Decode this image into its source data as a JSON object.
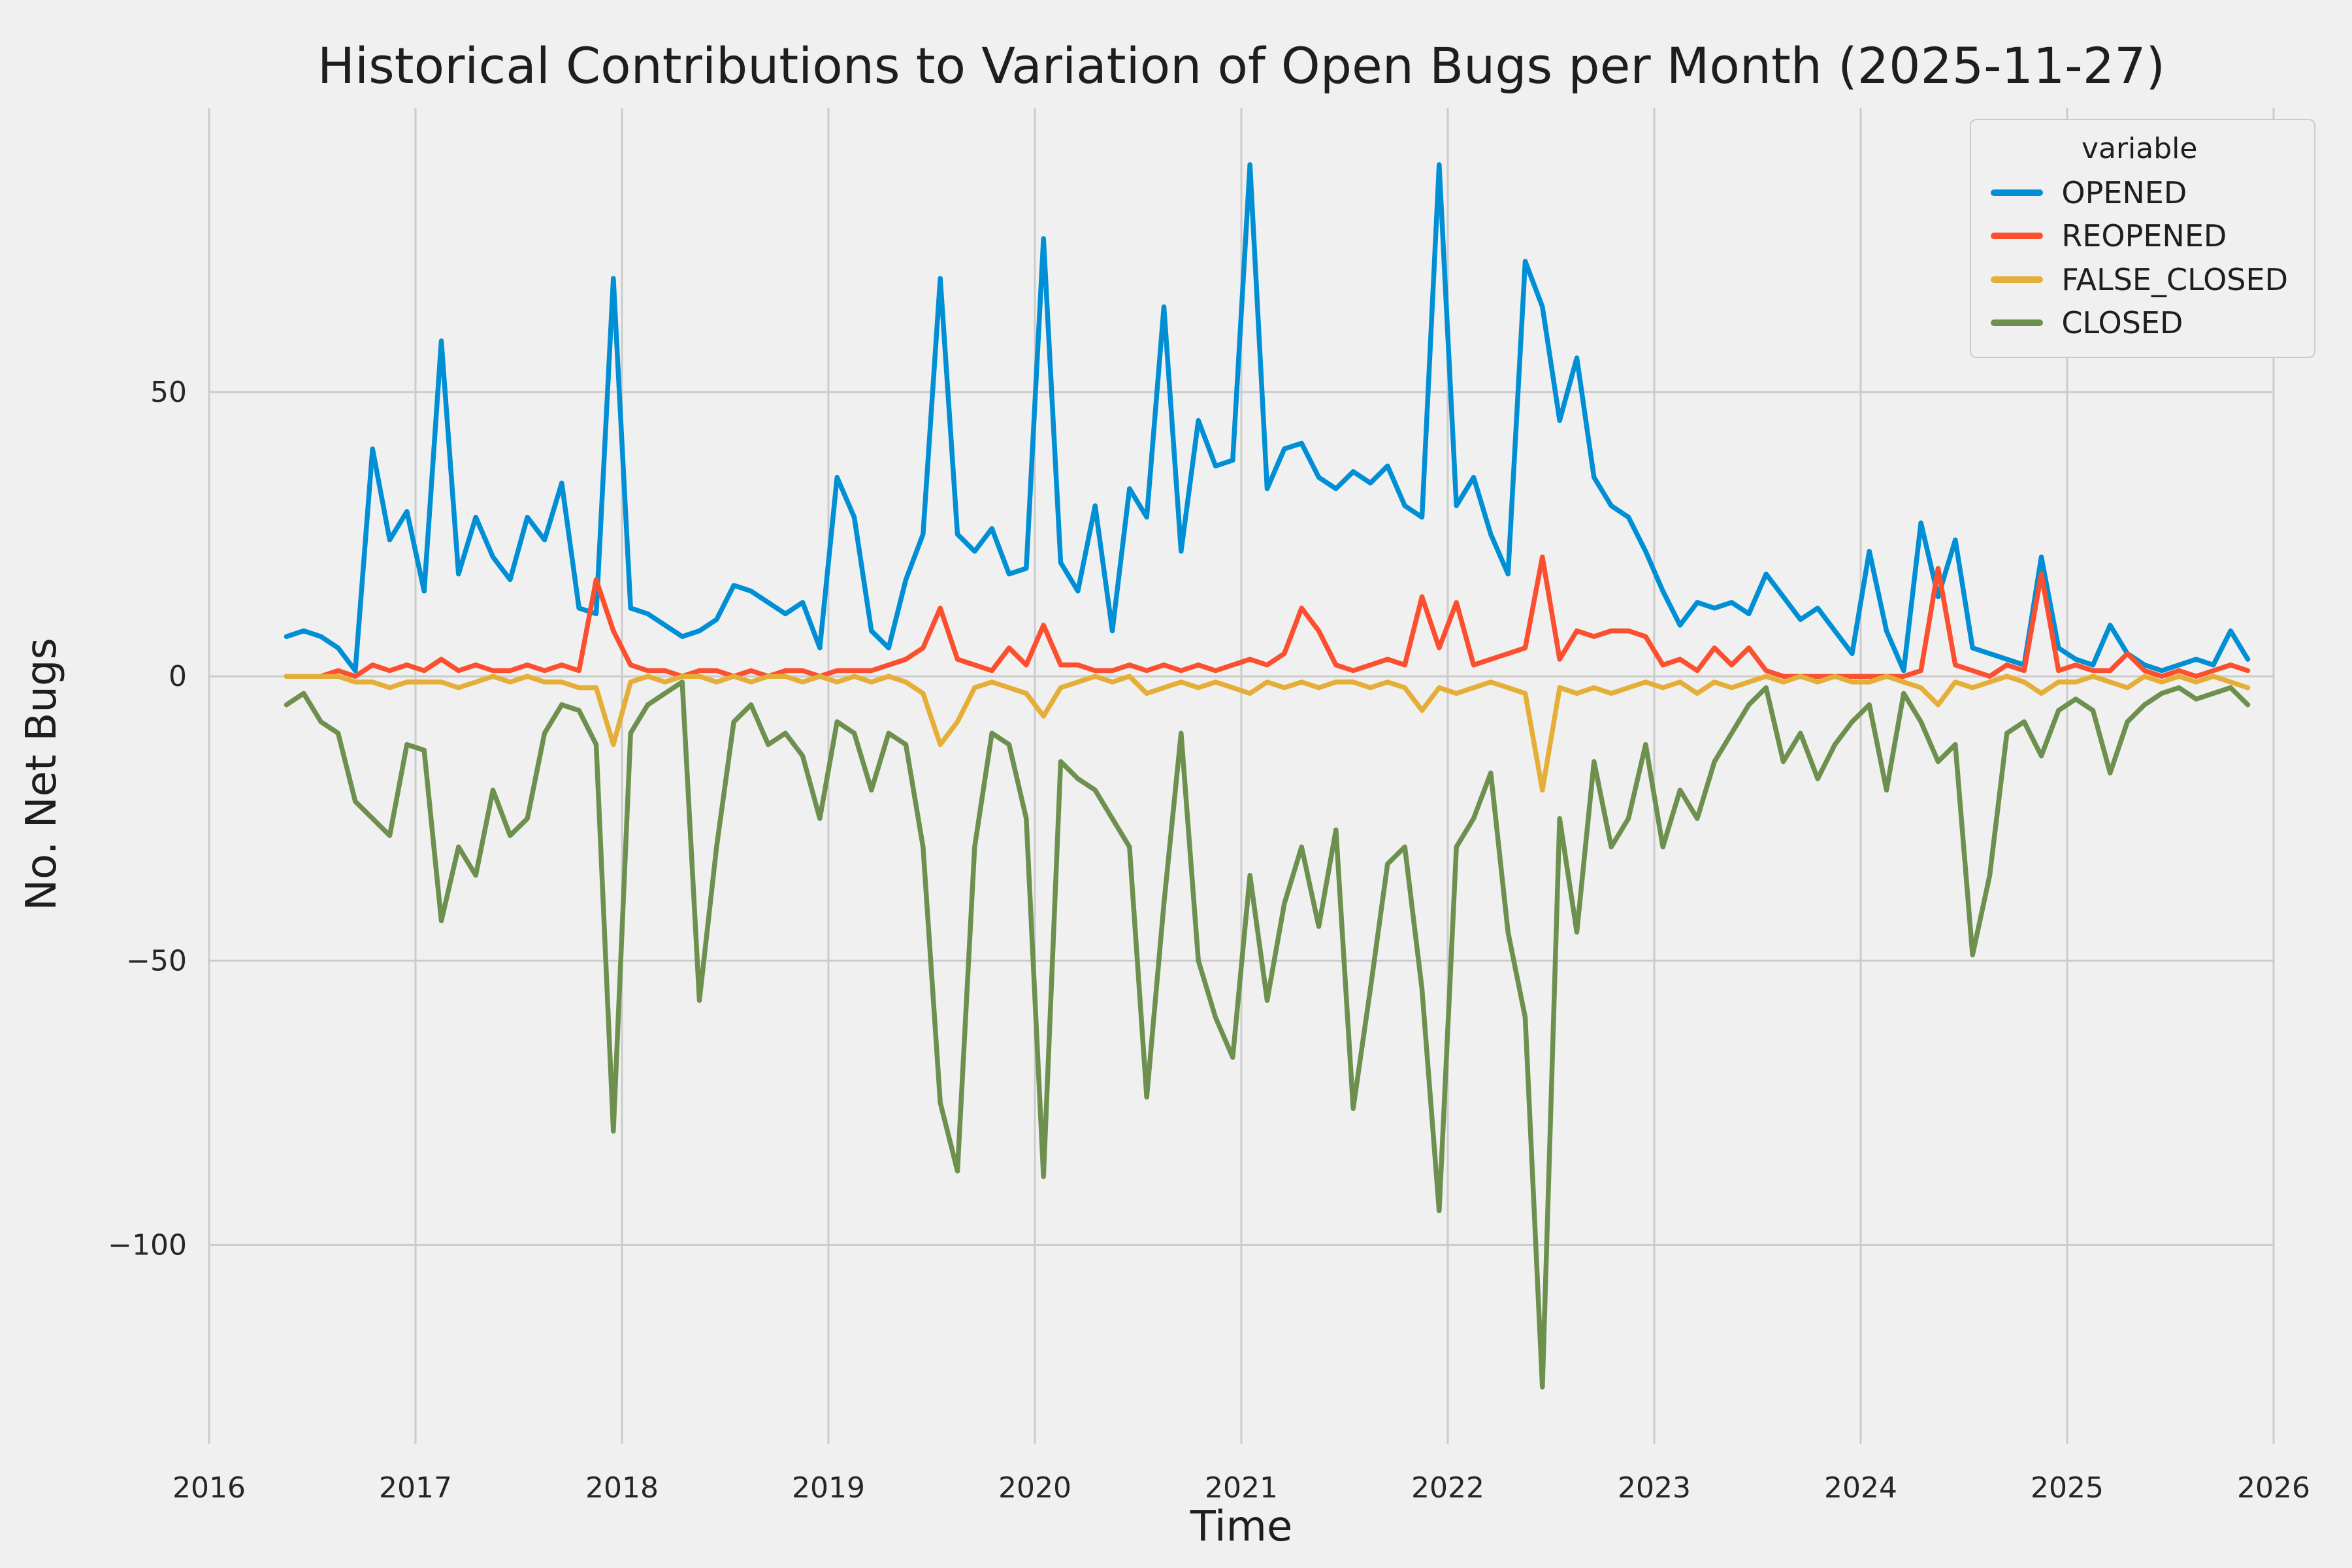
{
  "figure": {
    "background": "#f0f0f0",
    "grid_color": "#cbcbcb",
    "tick_color": "#262626"
  },
  "chart_data": {
    "type": "line",
    "title": "Historical Contributions to Variation of Open Bugs per Month (2025-11-27)",
    "xlabel": "Time",
    "ylabel": "No. Net Bugs",
    "legend_title": "variable",
    "legend_position": "upper right",
    "grid": true,
    "xlim": [
      2016,
      2026
    ],
    "ylim": [
      -135,
      100
    ],
    "x_ticks": [
      2016,
      2017,
      2018,
      2019,
      2020,
      2021,
      2022,
      2023,
      2024,
      2025,
      2026
    ],
    "y_ticks": [
      -100,
      -50,
      0,
      50
    ],
    "months": [
      "2016-05",
      "2016-06",
      "2016-07",
      "2016-08",
      "2016-09",
      "2016-10",
      "2016-11",
      "2016-12",
      "2017-01",
      "2017-02",
      "2017-03",
      "2017-04",
      "2017-05",
      "2017-06",
      "2017-07",
      "2017-08",
      "2017-09",
      "2017-10",
      "2017-11",
      "2017-12",
      "2018-01",
      "2018-02",
      "2018-03",
      "2018-04",
      "2018-05",
      "2018-06",
      "2018-07",
      "2018-08",
      "2018-09",
      "2018-10",
      "2018-11",
      "2018-12",
      "2019-01",
      "2019-02",
      "2019-03",
      "2019-04",
      "2019-05",
      "2019-06",
      "2019-07",
      "2019-08",
      "2019-09",
      "2019-10",
      "2019-11",
      "2019-12",
      "2020-01",
      "2020-02",
      "2020-03",
      "2020-04",
      "2020-05",
      "2020-06",
      "2020-07",
      "2020-08",
      "2020-09",
      "2020-10",
      "2020-11",
      "2020-12",
      "2021-01",
      "2021-02",
      "2021-03",
      "2021-04",
      "2021-05",
      "2021-06",
      "2021-07",
      "2021-08",
      "2021-09",
      "2021-10",
      "2021-11",
      "2021-12",
      "2022-01",
      "2022-02",
      "2022-03",
      "2022-04",
      "2022-05",
      "2022-06",
      "2022-07",
      "2022-08",
      "2022-09",
      "2022-10",
      "2022-11",
      "2022-12",
      "2023-01",
      "2023-02",
      "2023-03",
      "2023-04",
      "2023-05",
      "2023-06",
      "2023-07",
      "2023-08",
      "2023-09",
      "2023-10",
      "2023-11",
      "2023-12",
      "2024-01",
      "2024-02",
      "2024-03",
      "2024-04",
      "2024-05",
      "2024-06",
      "2024-07",
      "2024-08",
      "2024-09",
      "2024-10",
      "2024-11",
      "2024-12",
      "2025-01",
      "2025-02",
      "2025-03",
      "2025-04",
      "2025-05",
      "2025-06",
      "2025-07",
      "2025-08",
      "2025-09",
      "2025-10",
      "2025-11"
    ],
    "series": [
      {
        "name": "OPENED",
        "color": "#008fd5",
        "values": [
          7,
          8,
          7,
          5,
          1,
          40,
          24,
          29,
          15,
          59,
          18,
          28,
          21,
          17,
          28,
          24,
          34,
          12,
          11,
          70,
          12,
          11,
          9,
          7,
          8,
          10,
          16,
          15,
          13,
          11,
          13,
          5,
          35,
          28,
          8,
          5,
          17,
          25,
          70,
          25,
          22,
          26,
          18,
          19,
          77,
          20,
          15,
          30,
          8,
          33,
          28,
          65,
          22,
          45,
          37,
          38,
          90,
          33,
          40,
          41,
          35,
          33,
          36,
          34,
          37,
          30,
          28,
          90,
          30,
          35,
          25,
          18,
          73,
          65,
          45,
          56,
          35,
          30,
          28,
          22,
          15,
          9,
          13,
          12,
          13,
          11,
          18,
          14,
          10,
          12,
          8,
          4,
          22,
          8,
          1,
          27,
          14,
          24,
          5,
          4,
          3,
          2,
          21,
          5,
          3,
          2,
          9,
          4,
          2,
          1,
          2,
          3,
          2,
          8,
          3
        ]
      },
      {
        "name": "REOPENED",
        "color": "#fc4f30",
        "values": [
          0,
          0,
          0,
          1,
          0,
          2,
          1,
          2,
          1,
          3,
          1,
          2,
          1,
          1,
          2,
          1,
          2,
          1,
          17,
          8,
          2,
          1,
          1,
          0,
          1,
          1,
          0,
          1,
          0,
          1,
          1,
          0,
          1,
          1,
          1,
          2,
          3,
          5,
          12,
          3,
          2,
          1,
          5,
          2,
          9,
          2,
          2,
          1,
          1,
          2,
          1,
          2,
          1,
          2,
          1,
          2,
          3,
          2,
          4,
          12,
          8,
          2,
          1,
          2,
          3,
          2,
          14,
          5,
          13,
          2,
          3,
          4,
          5,
          21,
          3,
          8,
          7,
          8,
          8,
          7,
          2,
          3,
          1,
          5,
          2,
          5,
          1,
          0,
          0,
          0,
          0,
          0,
          0,
          0,
          0,
          1,
          19,
          2,
          1,
          0,
          2,
          1,
          18,
          1,
          2,
          1,
          1,
          4,
          1,
          0,
          1,
          0,
          1,
          2,
          1
        ]
      },
      {
        "name": "FALSE_CLOSED",
        "color": "#e5ae38",
        "values": [
          0,
          0,
          0,
          0,
          -1,
          -1,
          -2,
          -1,
          -1,
          -1,
          -2,
          -1,
          0,
          -1,
          0,
          -1,
          -1,
          -2,
          -2,
          -12,
          -1,
          0,
          -1,
          0,
          0,
          -1,
          0,
          -1,
          0,
          0,
          -1,
          0,
          -1,
          0,
          -1,
          0,
          -1,
          -3,
          -12,
          -8,
          -2,
          -1,
          -2,
          -3,
          -7,
          -2,
          -1,
          0,
          -1,
          0,
          -3,
          -2,
          -1,
          -2,
          -1,
          -2,
          -3,
          -1,
          -2,
          -1,
          -2,
          -1,
          -1,
          -2,
          -1,
          -2,
          -6,
          -2,
          -3,
          -2,
          -1,
          -2,
          -3,
          -20,
          -2,
          -3,
          -2,
          -3,
          -2,
          -1,
          -2,
          -1,
          -3,
          -1,
          -2,
          -1,
          0,
          -1,
          0,
          -1,
          0,
          -1,
          -1,
          0,
          -1,
          -2,
          -5,
          -1,
          -2,
          -1,
          0,
          -1,
          -3,
          -1,
          -1,
          0,
          -1,
          -2,
          0,
          -1,
          0,
          -1,
          0,
          -1,
          -2
        ]
      },
      {
        "name": "CLOSED",
        "color": "#6d904f",
        "values": [
          -5,
          -3,
          -8,
          -10,
          -22,
          -25,
          -28,
          -12,
          -13,
          -43,
          -30,
          -35,
          -20,
          -28,
          -25,
          -10,
          -5,
          -6,
          -12,
          -80,
          -10,
          -5,
          -3,
          -1,
          -57,
          -30,
          -8,
          -5,
          -12,
          -10,
          -14,
          -25,
          -8,
          -10,
          -20,
          -10,
          -12,
          -30,
          -75,
          -87,
          -30,
          -10,
          -12,
          -25,
          -88,
          -15,
          -18,
          -20,
          -25,
          -30,
          -74,
          -40,
          -10,
          -50,
          -60,
          -67,
          -35,
          -57,
          -40,
          -30,
          -44,
          -27,
          -76,
          -55,
          -33,
          -30,
          -55,
          -94,
          -30,
          -25,
          -17,
          -45,
          -60,
          -125,
          -25,
          -45,
          -15,
          -30,
          -25,
          -12,
          -30,
          -20,
          -25,
          -15,
          -10,
          -5,
          -2,
          -15,
          -10,
          -18,
          -12,
          -8,
          -5,
          -20,
          -3,
          -8,
          -15,
          -12,
          -49,
          -35,
          -10,
          -8,
          -14,
          -6,
          -4,
          -6,
          -17,
          -8,
          -5,
          -3,
          -2,
          -4,
          -3,
          -2,
          -5
        ]
      }
    ]
  }
}
